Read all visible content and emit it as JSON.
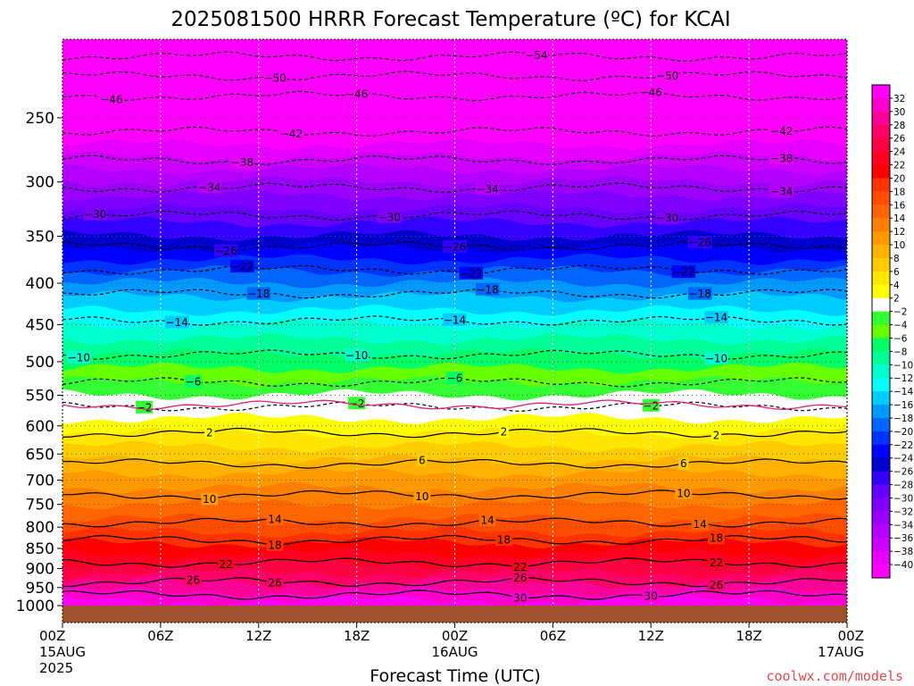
{
  "chart_data": {
    "type": "heatmap",
    "title": "2025081500 HRRR Forecast Temperature (ºC) for KCAI",
    "xlabel": "Forecast Time (UTC)",
    "ylabel": "",
    "credit": "coolwx.com/models",
    "colors": {
      "ground": "#a0522d",
      "credit": "#e8474a",
      "warm_contour": "#000000",
      "cold_contour": "#000000",
      "freezing_contour": "#e0207a"
    },
    "x_range_hours": [
      0,
      48
    ],
    "y_range_hpa": [
      200,
      1000
    ],
    "y_scale": "log",
    "y_ticks": [
      250,
      300,
      350,
      400,
      450,
      500,
      550,
      600,
      650,
      700,
      750,
      800,
      850,
      900,
      950,
      1000
    ],
    "x_ticks": [
      {
        "hour": 0,
        "label": "00Z",
        "sub1": "15AUG",
        "sub2": "2025"
      },
      {
        "hour": 6,
        "label": "06Z",
        "sub1": "",
        "sub2": ""
      },
      {
        "hour": 12,
        "label": "12Z",
        "sub1": "",
        "sub2": ""
      },
      {
        "hour": 18,
        "label": "18Z",
        "sub1": "",
        "sub2": ""
      },
      {
        "hour": 24,
        "label": "00Z",
        "sub1": "16AUG",
        "sub2": ""
      },
      {
        "hour": 30,
        "label": "06Z",
        "sub1": "",
        "sub2": ""
      },
      {
        "hour": 36,
        "label": "12Z",
        "sub1": "",
        "sub2": ""
      },
      {
        "hour": 42,
        "label": "18Z",
        "sub1": "",
        "sub2": ""
      },
      {
        "hour": 48,
        "label": "00Z",
        "sub1": "17AUG",
        "sub2": ""
      }
    ],
    "colorbar": {
      "labels": [
        "32",
        "30",
        "28",
        "26",
        "24",
        "22",
        "20",
        "18",
        "16",
        "14",
        "12",
        "10",
        "8",
        "6",
        "4",
        "2",
        "−2",
        "−4",
        "−6",
        "−8",
        "−10",
        "−12",
        "−14",
        "−16",
        "−18",
        "−20",
        "−22",
        "−24",
        "−26",
        "−28",
        "−30",
        "−32",
        "−34",
        "−36",
        "−38",
        "−40"
      ],
      "colors": [
        "#ff00ff",
        "#ff00cc",
        "#ff0099",
        "#ff0066",
        "#ff0040",
        "#ff0020",
        "#ff0000",
        "#ff3300",
        "#ff4d00",
        "#ff6600",
        "#ff8000",
        "#ff9900",
        "#ffb300",
        "#ffcc00",
        "#ffe600",
        "#ffff00",
        "#ffffff",
        "#33ff33",
        "#66ff00",
        "#00ff66",
        "#00ff99",
        "#00ffcc",
        "#00ffff",
        "#00ccff",
        "#0099ff",
        "#0066ff",
        "#0033ff",
        "#0000ff",
        "#0000cc",
        "#3300ff",
        "#6600ff",
        "#8000ff",
        "#9900ff",
        "#b300ff",
        "#cc00ff",
        "#e600ff",
        "#ff00ff"
      ]
    },
    "profile_temperatures": [
      {
        "p": 200,
        "t": -57
      },
      {
        "p": 210,
        "t": -55
      },
      {
        "p": 230,
        "t": -49
      },
      {
        "p": 250,
        "t": -44
      },
      {
        "p": 275,
        "t": -39
      },
      {
        "p": 300,
        "t": -34
      },
      {
        "p": 350,
        "t": -26
      },
      {
        "p": 400,
        "t": -18
      },
      {
        "p": 450,
        "t": -12
      },
      {
        "p": 500,
        "t": -7
      },
      {
        "p": 550,
        "t": -2
      },
      {
        "p": 565,
        "t": 0
      },
      {
        "p": 600,
        "t": 3
      },
      {
        "p": 650,
        "t": 7
      },
      {
        "p": 700,
        "t": 11
      },
      {
        "p": 750,
        "t": 14
      },
      {
        "p": 800,
        "t": 17
      },
      {
        "p": 850,
        "t": 21
      },
      {
        "p": 900,
        "t": 25
      },
      {
        "p": 950,
        "t": 29
      },
      {
        "p": 1000,
        "t": 33
      }
    ],
    "contours": [
      {
        "value": -54,
        "label": "54",
        "p": 210,
        "label_hours": [
          29
        ]
      },
      {
        "value": -50,
        "label": "50",
        "p": 222,
        "label_hours": [
          13,
          37
        ]
      },
      {
        "value": -46,
        "label": "46",
        "p": 235,
        "label_hours": [
          3,
          18,
          36
        ]
      },
      {
        "value": -42,
        "label": "42",
        "p": 260,
        "label_hours": [
          14,
          44
        ]
      },
      {
        "value": -38,
        "label": "38",
        "p": 282,
        "label_hours": [
          11,
          44
        ]
      },
      {
        "value": -34,
        "label": "34",
        "p": 305,
        "label_hours": [
          9,
          26,
          44
        ]
      },
      {
        "value": -30,
        "label": "30",
        "p": 330,
        "label_hours": [
          2,
          20,
          37
        ]
      },
      {
        "value": -26,
        "label": "26",
        "p": 360,
        "label_hours": [
          10,
          24,
          39
        ]
      },
      {
        "value": -22,
        "label": "22",
        "p": 385,
        "label_hours": [
          11,
          25,
          38
        ]
      },
      {
        "value": -18,
        "label": "18",
        "p": 412,
        "label_hours": [
          12,
          26,
          39
        ]
      },
      {
        "value": -14,
        "label": "14",
        "p": 445,
        "label_hours": [
          7,
          24,
          40
        ]
      },
      {
        "value": -10,
        "label": "10",
        "p": 490,
        "label_hours": [
          1,
          18,
          40
        ]
      },
      {
        "value": -6,
        "label": "6",
        "p": 530,
        "label_hours": [
          8,
          24
        ]
      },
      {
        "value": -2,
        "label": "2",
        "p": 568,
        "label_hours": [
          5,
          18,
          36
        ]
      },
      {
        "value": 2,
        "label": "2",
        "p": 612,
        "label_hours": [
          9,
          27,
          40
        ]
      },
      {
        "value": 6,
        "label": "6",
        "p": 668,
        "label_hours": [
          22,
          38
        ]
      },
      {
        "value": 10,
        "label": "10",
        "p": 730,
        "label_hours": [
          9,
          22,
          38
        ]
      },
      {
        "value": 14,
        "label": "14",
        "p": 790,
        "label_hours": [
          13,
          26,
          39
        ]
      },
      {
        "value": 18,
        "label": "18",
        "p": 830,
        "label_hours": [
          13,
          27,
          40
        ]
      },
      {
        "value": 22,
        "label": "22",
        "p": 885,
        "label_hours": [
          10,
          28,
          40
        ]
      },
      {
        "value": 26,
        "label": "26",
        "p": 935,
        "label_hours": [
          8,
          13,
          28,
          40
        ]
      },
      {
        "value": 30,
        "label": "30",
        "p": 970,
        "label_hours": [
          28,
          36
        ]
      }
    ]
  }
}
